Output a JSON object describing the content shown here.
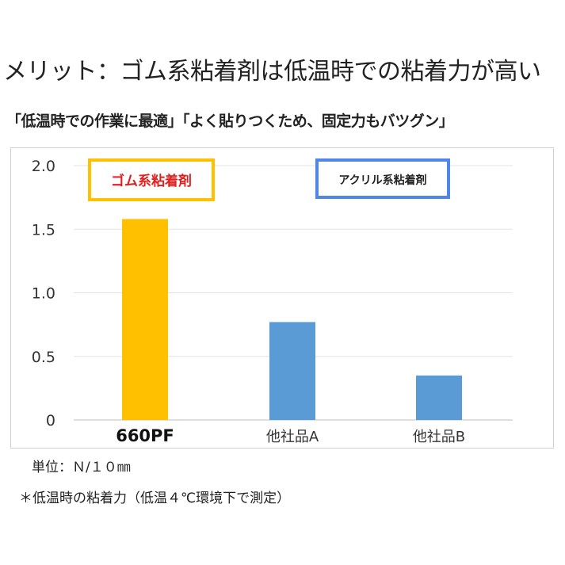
{
  "page": {
    "headline": "メリット：ゴム系粘着剤は低温時での粘着力が高い",
    "subhead": "「低温時での作業に最適」「よく貼りつくため、固定力もバツグン」",
    "unit_note": "単位：Ｎ/１０㎜",
    "footnote": "＊低温時の粘着力（低温４℃環境下で測定）"
  },
  "colors": {
    "rubber": "#ffc000",
    "acrylic": "#5b9bd5",
    "rubber_label_text": "#e02020",
    "acrylic_box_border": "#4f86e8",
    "grid": "#e3e3e3",
    "axis": "#bfbfbf"
  },
  "chart_data": {
    "type": "bar",
    "categories": [
      "660PF",
      "他社品A",
      "他社品B"
    ],
    "values": [
      1.58,
      0.77,
      0.35
    ],
    "ylim": [
      0,
      2.0
    ],
    "yticks": [
      0,
      0.5,
      1.0,
      1.5,
      2.0
    ],
    "ytick_labels": [
      "0",
      "0.5",
      "1.0",
      "1.5",
      "2.0"
    ],
    "grid": true,
    "xlabel": "",
    "ylabel": "",
    "groups": [
      {
        "label": "ゴム系粘着剤",
        "categories": [
          "660PF"
        ]
      },
      {
        "label": "アクリル系粘着剤",
        "categories": [
          "他社品A",
          "他社品B"
        ]
      }
    ]
  }
}
